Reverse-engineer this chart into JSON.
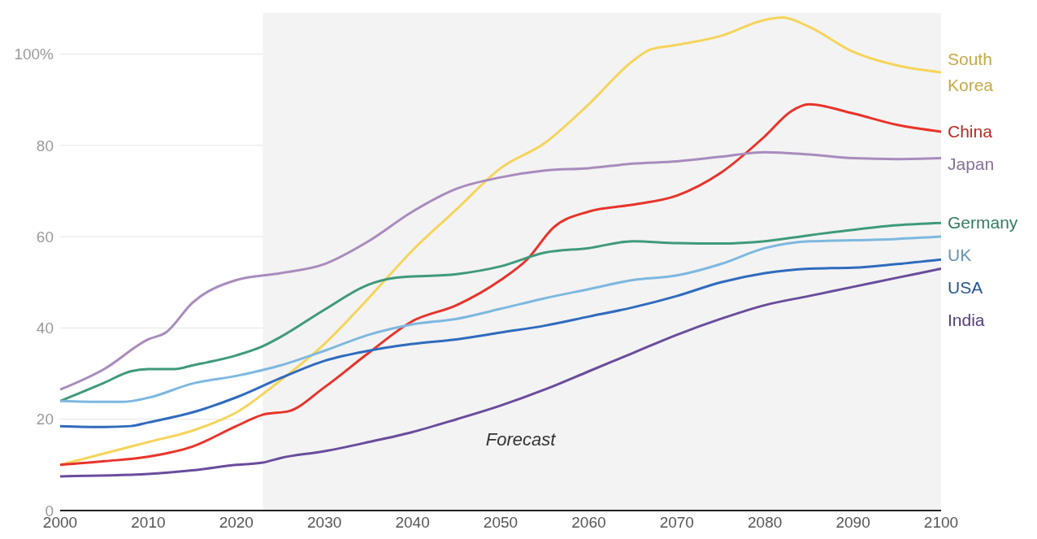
{
  "chart_data": {
    "type": "line",
    "xlim": [
      2000,
      2100
    ],
    "xticks": [
      2000,
      2010,
      2020,
      2030,
      2040,
      2050,
      2060,
      2070,
      2080,
      2090,
      2100
    ],
    "ylim": [
      0,
      109
    ],
    "yticks": [
      0,
      20,
      40,
      60,
      80,
      {
        "value": 100,
        "label": "100%"
      }
    ],
    "grid": "y",
    "legend": false,
    "marker": "none",
    "line_style": "solid",
    "bands": [
      {
        "axis": "x",
        "from": 2023,
        "to": 2100,
        "label": "Forecast",
        "color": "#f3f3f3"
      }
    ],
    "series": [
      {
        "name": "South Korea",
        "color": "#f5d45a",
        "x": [
          2000,
          2005,
          2010,
          2015,
          2020,
          2025,
          2030,
          2035,
          2040,
          2045,
          2050,
          2055,
          2060,
          2065,
          2067,
          2070,
          2075,
          2080,
          2082,
          2085,
          2090,
          2095,
          2100
        ],
        "values": [
          10,
          12.5,
          15,
          17.5,
          21.5,
          28.5,
          36.5,
          46.5,
          57,
          66,
          75,
          80.5,
          89,
          98.5,
          101,
          102,
          104,
          107.5,
          108,
          106,
          100.5,
          97.5,
          96
        ]
      },
      {
        "name": "China",
        "color": "#e8332a",
        "x": [
          2000,
          2005,
          2010,
          2015,
          2020,
          2023,
          2026,
          2030,
          2035,
          2040,
          2045,
          2050,
          2053,
          2056,
          2060,
          2065,
          2070,
          2075,
          2080,
          2083,
          2085,
          2090,
          2095,
          2100
        ],
        "values": [
          10,
          10.8,
          11.8,
          14,
          18.5,
          21,
          21.8,
          27,
          34.5,
          41.5,
          45,
          50.5,
          55,
          62,
          65.5,
          67,
          69,
          74,
          82,
          87.5,
          89,
          87,
          84.5,
          83
        ]
      },
      {
        "name": "Japan",
        "color": "#a98bbd",
        "x": [
          2000,
          2005,
          2010,
          2012,
          2015,
          2020,
          2025,
          2030,
          2035,
          2040,
          2045,
          2050,
          2055,
          2060,
          2065,
          2070,
          2075,
          2080,
          2085,
          2090,
          2095,
          2100
        ],
        "values": [
          26.5,
          31,
          37.5,
          39,
          45.5,
          50.5,
          52,
          54,
          59,
          65.5,
          70.5,
          73,
          74.5,
          75,
          76,
          76.5,
          77.5,
          78.5,
          78,
          77.2,
          77,
          77.2
        ]
      },
      {
        "name": "Germany",
        "color": "#3f9a7a",
        "x": [
          2000,
          2005,
          2008,
          2010,
          2013,
          2015,
          2020,
          2023,
          2025,
          2030,
          2035,
          2038,
          2045,
          2050,
          2055,
          2060,
          2065,
          2070,
          2075,
          2080,
          2085,
          2090,
          2095,
          2100
        ],
        "values": [
          24,
          28,
          30.5,
          31,
          31,
          31.8,
          34,
          36,
          38,
          44,
          49.5,
          51,
          51.8,
          53.5,
          56.5,
          57.5,
          59,
          58.6,
          58.5,
          59,
          60.3,
          61.5,
          62.5,
          63
        ]
      },
      {
        "name": "UK",
        "color": "#7db8e0",
        "x": [
          2000,
          2005,
          2007,
          2010,
          2015,
          2020,
          2025,
          2030,
          2035,
          2040,
          2045,
          2050,
          2055,
          2060,
          2065,
          2070,
          2075,
          2080,
          2085,
          2090,
          2095,
          2100
        ],
        "values": [
          24,
          23.8,
          23.8,
          24.7,
          27.8,
          29.5,
          31.8,
          35,
          38.5,
          40.8,
          42,
          44.2,
          46.5,
          48.5,
          50.5,
          51.5,
          54,
          57.5,
          59,
          59.2,
          59.5,
          60
        ]
      },
      {
        "name": "USA",
        "color": "#2f6bbd",
        "x": [
          2000,
          2005,
          2008,
          2010,
          2015,
          2020,
          2025,
          2030,
          2035,
          2040,
          2045,
          2050,
          2055,
          2060,
          2065,
          2070,
          2075,
          2080,
          2085,
          2090,
          2095,
          2100
        ],
        "values": [
          18.5,
          18.3,
          18.5,
          19.3,
          21.5,
          24.8,
          29,
          32.8,
          35,
          36.5,
          37.5,
          39,
          40.5,
          42.5,
          44.5,
          47,
          50,
          52,
          53,
          53.2,
          54,
          55
        ]
      },
      {
        "name": "India",
        "color": "#6a4c9c",
        "x": [
          2000,
          2010,
          2015,
          2020,
          2023,
          2025,
          2030,
          2035,
          2040,
          2045,
          2050,
          2055,
          2060,
          2065,
          2070,
          2075,
          2080,
          2085,
          2090,
          2095,
          2100
        ],
        "values": [
          7.5,
          8,
          8.8,
          10,
          10.5,
          11.5,
          13,
          15,
          17.2,
          20,
          23,
          26.5,
          30.5,
          34.5,
          38.5,
          42,
          45,
          47,
          49,
          51,
          53
        ]
      }
    ]
  }
}
